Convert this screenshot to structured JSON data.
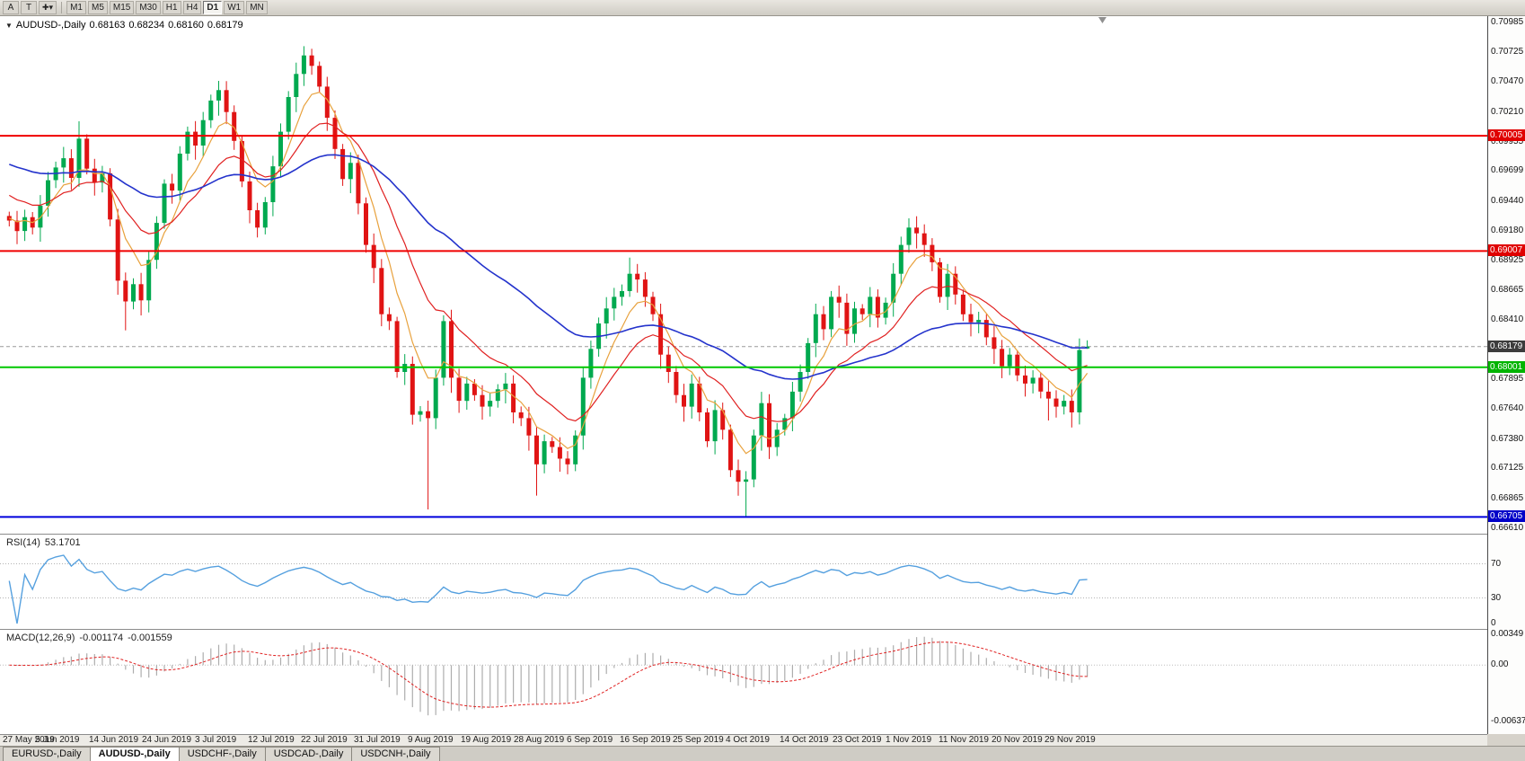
{
  "toolbar": {
    "buttons": [
      "A",
      "T"
    ],
    "cursor_icon": "crosshair-cursor",
    "timeframes": [
      "M1",
      "M5",
      "M15",
      "M30",
      "H1",
      "H4",
      "D1",
      "W1",
      "MN"
    ],
    "active_timeframe": "D1"
  },
  "chart": {
    "title": {
      "symbol": "AUDUSD-,Daily",
      "open": "0.68163",
      "high": "0.68234",
      "low": "0.68160",
      "close": "0.68179"
    },
    "price_axis": {
      "max": 0.7104,
      "min": 0.6656,
      "ticks": [
        "0.70985",
        "0.70725",
        "0.70470",
        "0.70210",
        "0.69955",
        "0.69699",
        "0.69440",
        "0.69180",
        "0.68925",
        "0.68665",
        "0.68410",
        "0.67895",
        "0.67640",
        "0.67380",
        "0.67125",
        "0.66865",
        "0.66610"
      ]
    },
    "levels": [
      {
        "label": "0.70005",
        "value": 0.70005,
        "line": "solid",
        "color": "#F00000",
        "box_bg": "#E00000",
        "box_fg": "#FFFFFF",
        "width": 2
      },
      {
        "label": "0.69007",
        "value": 0.69007,
        "line": "solid",
        "color": "#F00000",
        "box_bg": "#E00000",
        "box_fg": "#FFFFFF",
        "width": 2
      },
      {
        "label": "0.68179",
        "value": 0.68179,
        "line": "dashed",
        "color": "#9A9A9A",
        "box_bg": "#3C3C3C",
        "box_fg": "#FFFFFF",
        "width": 1
      },
      {
        "label": "0.68001",
        "value": 0.68001,
        "line": "solid",
        "color": "#00C800",
        "box_bg": "#00B400",
        "box_fg": "#FFFFFF",
        "width": 2
      },
      {
        "label": "0.66705",
        "value": 0.66705,
        "line": "solid",
        "color": "#0000DC",
        "box_bg": "#0000C8",
        "box_fg": "#FFFFFF",
        "width": 2
      }
    ],
    "candles": {
      "up_color": "#00A94F",
      "down_color": "#E01414",
      "first_open": 0.6931,
      "closes": [
        0.6927,
        0.6918,
        0.693,
        0.6921,
        0.694,
        0.6962,
        0.6973,
        0.6981,
        0.6964,
        0.6998,
        0.6972,
        0.696,
        0.6968,
        0.6928,
        0.6875,
        0.6857,
        0.6872,
        0.6858,
        0.6893,
        0.6925,
        0.6959,
        0.6953,
        0.6985,
        0.7004,
        0.6992,
        0.7014,
        0.7031,
        0.704,
        0.7021,
        0.6996,
        0.6961,
        0.6936,
        0.6921,
        0.6943,
        0.6974,
        0.7004,
        0.7034,
        0.7054,
        0.707,
        0.7061,
        0.7043,
        0.7016,
        0.6989,
        0.6963,
        0.6977,
        0.6942,
        0.6906,
        0.6886,
        0.6846,
        0.684,
        0.6796,
        0.6803,
        0.6759,
        0.6762,
        0.6756,
        0.6791,
        0.684,
        0.6791,
        0.6771,
        0.6786,
        0.6776,
        0.6766,
        0.6771,
        0.6781,
        0.6786,
        0.6761,
        0.6756,
        0.6741,
        0.6716,
        0.6736,
        0.6731,
        0.6721,
        0.6716,
        0.6741,
        0.6791,
        0.6816,
        0.6838,
        0.6851,
        0.6861,
        0.6866,
        0.6881,
        0.6876,
        0.6861,
        0.6846,
        0.6811,
        0.6796,
        0.6776,
        0.6766,
        0.6786,
        0.6761,
        0.6736,
        0.6763,
        0.6746,
        0.6711,
        0.6701,
        0.6703,
        0.6741,
        0.6769,
        0.6731,
        0.6746,
        0.6756,
        0.6779,
        0.6796,
        0.6821,
        0.6846,
        0.6833,
        0.6861,
        0.6856,
        0.6829,
        0.6851,
        0.6846,
        0.6861,
        0.6843,
        0.6856,
        0.6881,
        0.6906,
        0.6921,
        0.6916,
        0.6906,
        0.6891,
        0.6861,
        0.6881,
        0.6863,
        0.6846,
        0.6839,
        0.6841,
        0.6826,
        0.6816,
        0.6801,
        0.6811,
        0.6793,
        0.6786,
        0.6791,
        0.6779,
        0.6773,
        0.6766,
        0.6771,
        0.6761,
        0.6815,
        0.68179
      ],
      "overrides": {
        "9": {
          "h": 0.7013
        },
        "15": {
          "l": 0.6832
        },
        "27": {
          "h": 0.7048
        },
        "38": {
          "h": 0.7078
        },
        "54": {
          "l": 0.6677
        },
        "68": {
          "l": 0.6689
        },
        "80": {
          "h": 0.6895
        },
        "95": {
          "l": 0.66705
        },
        "116": {
          "h": 0.6929
        },
        "134": {
          "l": 0.6754
        },
        "138": {
          "h": 0.6825
        },
        "139": {
          "o": 0.68163,
          "h": 0.68234,
          "l": 0.6816
        }
      }
    },
    "ma": [
      {
        "name": "ma-fast-orange",
        "period": 6,
        "seed": 0.693,
        "color": "#E8A13C",
        "width": 1.2
      },
      {
        "name": "ma-mid-red",
        "period": 15,
        "seed": 0.6952,
        "color": "#E02020",
        "width": 1.2
      },
      {
        "name": "ma-slow-blue",
        "period": 45,
        "seed": 0.6978,
        "color": "#2433CC",
        "width": 1.6
      }
    ],
    "dates": [
      "27 May 2019",
      "5 Jun 2019",
      "14 Jun 2019",
      "24 Jun 2019",
      "3 Jul 2019",
      "12 Jul 2019",
      "22 Jul 2019",
      "31 Jul 2019",
      "9 Aug 2019",
      "19 Aug 2019",
      "28 Aug 2019",
      "6 Sep 2019",
      "16 Sep 2019",
      "25 Sep 2019",
      "4 Oct 2019",
      "14 Oct 2019",
      "23 Oct 2019",
      "1 Nov 2019",
      "11 Nov 2019",
      "20 Nov 2019",
      "29 Nov 2019"
    ]
  },
  "rsi": {
    "label": "RSI(14)",
    "value": "53.1701",
    "period": 14,
    "levels": [
      70,
      30
    ],
    "ticks": [
      "70",
      "30",
      "0"
    ],
    "color": "#55A0DF"
  },
  "macd": {
    "label": "MACD(12,26,9)",
    "value_macd": "-0.001174",
    "value_signal": "-0.001559",
    "hist_color": "#ADADAD",
    "signal_color": "#E02020",
    "ticks": [
      {
        "label": "0.00349",
        "v": 0.00349
      },
      {
        "label": "0.00",
        "v": 0
      },
      {
        "label": "-0.00637",
        "v": -0.00637
      }
    ]
  },
  "tabs": [
    {
      "label": "EURUSD-,Daily",
      "active": false
    },
    {
      "label": "AUDUSD-,Daily",
      "active": true
    },
    {
      "label": "USDCHF-,Daily",
      "active": false
    },
    {
      "label": "USDCAD-,Daily",
      "active": false
    },
    {
      "label": "USDCNH-,Daily",
      "active": false
    }
  ]
}
